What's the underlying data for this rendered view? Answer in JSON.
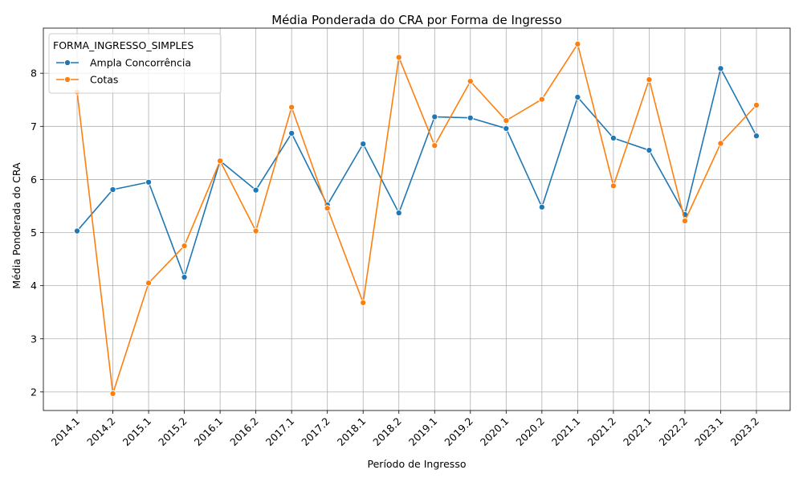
{
  "chart_data": {
    "type": "line",
    "title": "Média Ponderada do CRA por Forma de Ingresso",
    "xlabel": "Período de Ingresso",
    "ylabel": "Média Ponderada do CRA",
    "categories": [
      "2014.1",
      "2014.2",
      "2015.1",
      "2015.2",
      "2016.1",
      "2016.2",
      "2017.1",
      "2017.2",
      "2018.1",
      "2018.2",
      "2019.1",
      "2019.2",
      "2020.1",
      "2020.2",
      "2021.1",
      "2021.2",
      "2022.1",
      "2022.2",
      "2023.1",
      "2023.2"
    ],
    "ylim": [
      1.65,
      8.85
    ],
    "yticks": [
      2,
      3,
      4,
      5,
      6,
      7,
      8
    ],
    "grid": true,
    "legend": {
      "title": "FORMA_INGRESSO_SIMPLES",
      "placement": "upper-left"
    },
    "series": [
      {
        "name": "Ampla Concorrência",
        "color": "#1f77b4",
        "values": [
          5.03,
          5.81,
          5.95,
          4.16,
          6.35,
          5.8,
          6.87,
          5.52,
          6.67,
          5.37,
          7.18,
          7.16,
          6.96,
          5.48,
          7.55,
          6.78,
          6.55,
          5.34,
          8.09,
          6.82
        ]
      },
      {
        "name": "Cotas",
        "color": "#ff7f0e",
        "values": [
          7.65,
          1.97,
          4.05,
          4.75,
          6.35,
          5.03,
          7.36,
          5.46,
          3.68,
          8.3,
          6.64,
          7.85,
          7.11,
          7.51,
          8.55,
          5.88,
          7.88,
          5.22,
          6.68,
          7.4
        ]
      }
    ]
  }
}
